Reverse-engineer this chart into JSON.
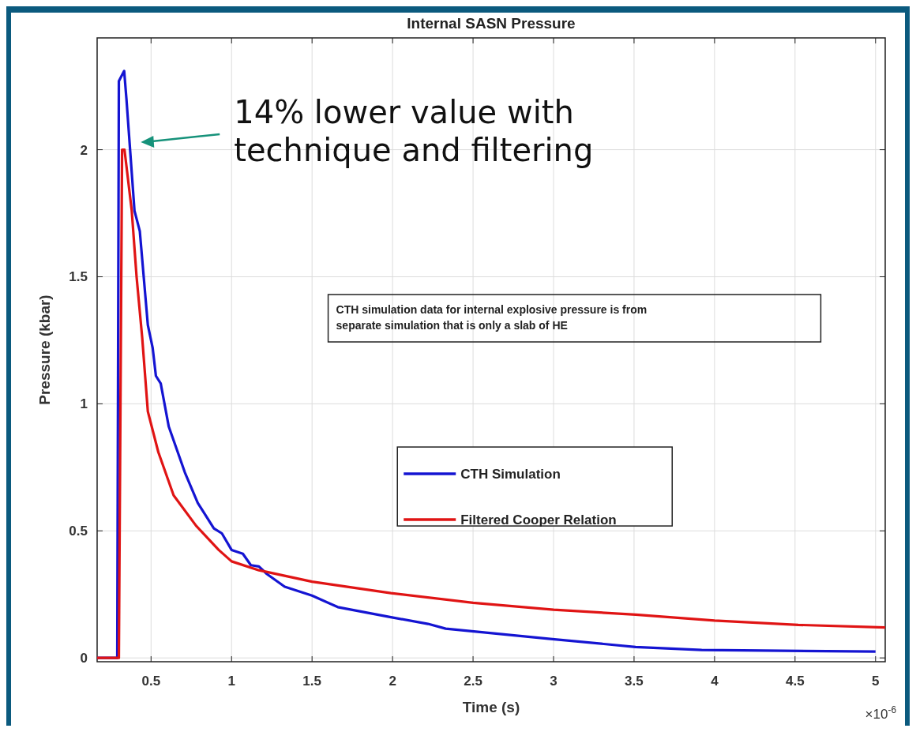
{
  "chart_data": {
    "type": "line",
    "title": "Internal SASN Pressure",
    "xlabel": "Time (s)",
    "ylabel": "Pressure (kbar)",
    "xlim": [
      0.165,
      5.06
    ],
    "xticks": [
      0.5,
      1,
      1.5,
      2,
      2.5,
      3,
      3.5,
      4,
      4.5,
      5
    ],
    "ylim": [
      -0.015,
      2.44
    ],
    "yticks": [
      0,
      0.5,
      1,
      1.5,
      2
    ],
    "grid": true,
    "legend": "right",
    "line_style": "solid",
    "series": [
      {
        "name": "CTH Simulation",
        "color": "#1414d2",
        "x": [
          0.165,
          0.29,
          0.3,
          0.333,
          0.347,
          0.397,
          0.43,
          0.48,
          0.51,
          0.53,
          0.56,
          0.61,
          0.66,
          0.71,
          0.79,
          0.89,
          0.94,
          1.0,
          1.07,
          1.12,
          1.17,
          1.22,
          1.33,
          1.5,
          1.66,
          1.99,
          2.22,
          2.33,
          2.98,
          3.51,
          3.92,
          5.0
        ],
        "values": [
          0,
          0,
          2.27,
          2.31,
          2.2,
          1.76,
          1.68,
          1.31,
          1.22,
          1.11,
          1.08,
          0.91,
          0.82,
          0.73,
          0.61,
          0.51,
          0.49,
          0.425,
          0.41,
          0.365,
          0.36,
          0.33,
          0.28,
          0.245,
          0.2,
          0.16,
          0.134,
          0.115,
          0.075,
          0.043,
          0.031,
          0.025
        ]
      },
      {
        "name": "Filtered Cooper Relation",
        "color": "#e01414",
        "x": [
          0.165,
          0.3,
          0.32,
          0.335,
          0.38,
          0.41,
          0.445,
          0.48,
          0.545,
          0.64,
          0.78,
          0.92,
          1.0,
          1.17,
          1.5,
          1.99,
          2.5,
          3.0,
          3.51,
          4.0,
          4.52,
          5.06
        ],
        "values": [
          0,
          0,
          2.0,
          2.0,
          1.76,
          1.5,
          1.26,
          0.97,
          0.81,
          0.64,
          0.52,
          0.425,
          0.38,
          0.345,
          0.3,
          0.255,
          0.217,
          0.19,
          0.17,
          0.147,
          0.13,
          0.12
        ]
      }
    ],
    "annotations": [
      "14% lower value with technique and filtering",
      "CTH simulation data for internal explosive pressure is from separate simulation that is only a slab of HE",
      "×10$^{-6}$"
    ]
  }
}
